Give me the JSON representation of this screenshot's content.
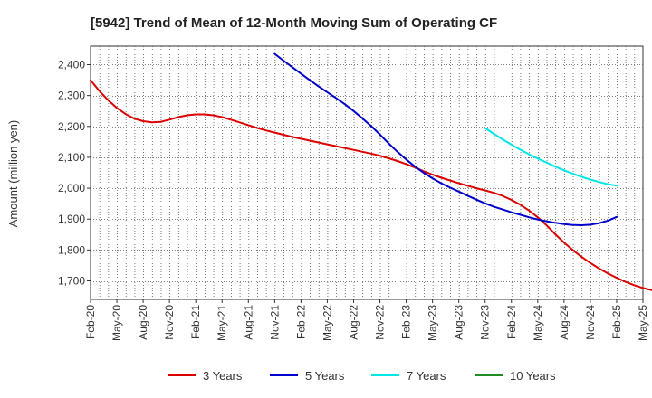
{
  "chart_data": {
    "type": "line",
    "title": "[5942]  Trend of Mean of 12-Month Moving Sum of Operating CF",
    "xlabel": "",
    "ylabel": "Amount (million yen)",
    "ylim": [
      1640,
      2460
    ],
    "yticks": [
      1700,
      1800,
      1900,
      2000,
      2100,
      2200,
      2300,
      2400
    ],
    "ytick_labels": [
      "1,700",
      "1,800",
      "1,900",
      "2,000",
      "2,100",
      "2,200",
      "2,300",
      "2,400"
    ],
    "x_tick_labels": [
      "Feb-20",
      "May-20",
      "Aug-20",
      "Nov-20",
      "Feb-21",
      "May-21",
      "Aug-21",
      "Nov-21",
      "Feb-22",
      "May-22",
      "Aug-22",
      "Nov-22",
      "Feb-23",
      "May-23",
      "Aug-23",
      "Nov-23",
      "Feb-24",
      "May-24",
      "Aug-24",
      "Nov-24",
      "Feb-25",
      "May-25"
    ],
    "grid": true,
    "legend_position": "bottom",
    "series": [
      {
        "name": "3 Years",
        "color": "#dd0000",
        "start_month_index": 0,
        "values": [
          2350,
          2315,
          2285,
          2260,
          2240,
          2225,
          2217,
          2213,
          2215,
          2222,
          2230,
          2236,
          2239,
          2239,
          2236,
          2230,
          2222,
          2213,
          2204,
          2195,
          2187,
          2180,
          2173,
          2166,
          2160,
          2154,
          2148,
          2142,
          2136,
          2130,
          2124,
          2118,
          2112,
          2105,
          2097,
          2088,
          2078,
          2067,
          2055,
          2044,
          2034,
          2025,
          2016,
          2008,
          2000,
          1993,
          1985,
          1975,
          1962,
          1947,
          1928,
          1906,
          1880,
          1851,
          1824,
          1800,
          1778,
          1758,
          1740,
          1724,
          1710,
          1697,
          1686,
          1677,
          1670,
          1664,
          1660
        ]
      },
      {
        "name": "5 Years",
        "color": "#0000cc",
        "start_month_index": 21,
        "values": [
          2435,
          2413,
          2392,
          2371,
          2350,
          2330,
          2311,
          2292,
          2272,
          2250,
          2226,
          2201,
          2174,
          2145,
          2118,
          2093,
          2070,
          2050,
          2032,
          2016,
          2002,
          1989,
          1976,
          1963,
          1951,
          1940,
          1931,
          1922,
          1914,
          1906,
          1899,
          1893,
          1888,
          1884,
          1881,
          1880,
          1882,
          1887,
          1895,
          1907
        ]
      },
      {
        "name": "7 Years",
        "color": "#00e5e5",
        "start_month_index": 45,
        "values": [
          2195,
          2176,
          2158,
          2141,
          2125,
          2110,
          2096,
          2083,
          2070,
          2058,
          2047,
          2037,
          2028,
          2020,
          2013,
          2008
        ]
      },
      {
        "name": "10 Years",
        "color": "#228b22",
        "start_month_index": 0,
        "values": []
      }
    ]
  }
}
